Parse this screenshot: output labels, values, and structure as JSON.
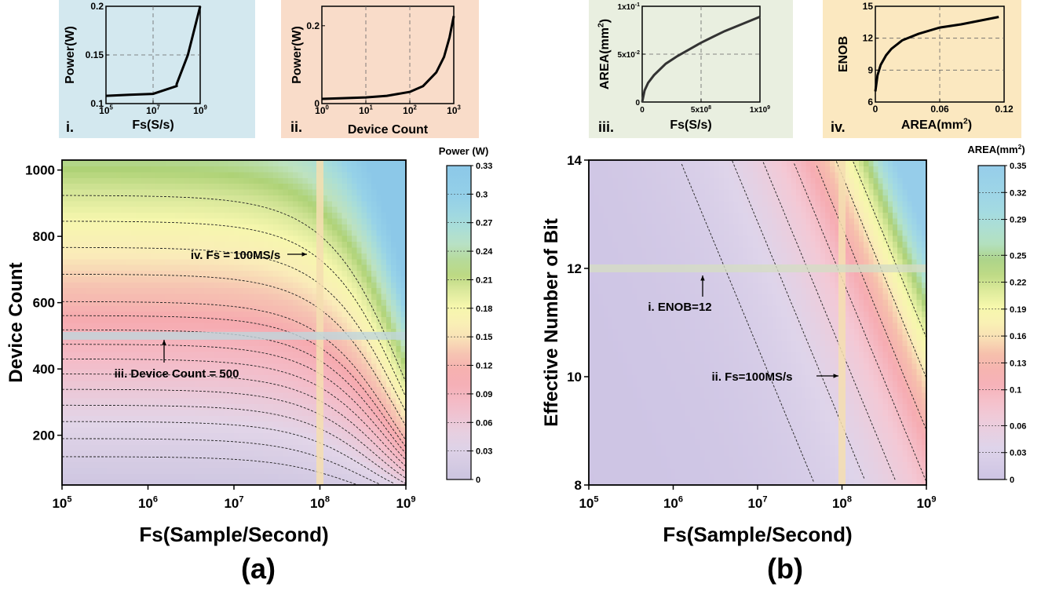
{
  "panel_labels": {
    "a": "(a)",
    "b": "(b)"
  },
  "chart_data": [
    {
      "id": "inset-i",
      "type": "line",
      "tag": "i.",
      "xlabel": "Fs(S/s)",
      "ylabel": "Power(W)",
      "xscale": "log",
      "xlim": [
        100000.0,
        1000000000.0
      ],
      "ylim": [
        0.1,
        0.2
      ],
      "x_ticks": [
        {
          "v": 100000.0,
          "b": "10",
          "e": "5"
        },
        {
          "v": 10000000.0,
          "b": "10",
          "e": "7"
        },
        {
          "v": 1000000000.0,
          "b": "10",
          "e": "9"
        }
      ],
      "y_ticks": [
        "0.1",
        "0.15",
        "0.2"
      ],
      "grid": true,
      "background": "#d3e8ef",
      "x": [
        100000.0,
        1000000.0,
        10000000.0,
        100000000.0,
        100000000.0,
        300000000.0,
        1000000000.0
      ],
      "y": [
        0.108,
        0.109,
        0.11,
        0.118,
        0.12,
        0.15,
        0.2
      ]
    },
    {
      "id": "inset-ii",
      "type": "line",
      "tag": "ii.",
      "xlabel": "Device Count",
      "ylabel": "Power(W)",
      "xscale": "log",
      "xlim": [
        1,
        1000
      ],
      "ylim": [
        0,
        0.25
      ],
      "x_ticks": [
        {
          "v": 1,
          "b": "10",
          "e": "0"
        },
        {
          "v": 10,
          "b": "10",
          "e": "1"
        },
        {
          "v": 100,
          "b": "10",
          "e": "2"
        },
        {
          "v": 1000,
          "b": "10",
          "e": "3"
        }
      ],
      "y_ticks": [
        "0",
        "0.2"
      ],
      "grid": true,
      "background": "#f9dcc9",
      "x": [
        1,
        3,
        10,
        30,
        100,
        200,
        400,
        600,
        800,
        1000
      ],
      "y": [
        0.012,
        0.014,
        0.016,
        0.02,
        0.03,
        0.045,
        0.08,
        0.12,
        0.17,
        0.225
      ]
    },
    {
      "id": "inset-iii",
      "type": "line",
      "tag": "iii.",
      "xlabel": "Fs(S/s)",
      "ylabel": "AREA(mm",
      "ylabel_sup": "2",
      "ylabel_tail": ")",
      "xscale": "linear",
      "xlim": [
        0,
        1000000000.0
      ],
      "ylim": [
        0,
        0.1
      ],
      "x_ticks": [
        {
          "v": 0,
          "t": "0"
        },
        {
          "v": 500000000.0,
          "t": "5x10",
          "e": "8"
        },
        {
          "v": 1000000000.0,
          "t": "1x10",
          "e": "9"
        }
      ],
      "y_ticks": [
        {
          "v": 0,
          "t": "0"
        },
        {
          "v": 0.05,
          "t": "5x10",
          "e": "-2"
        },
        {
          "v": 0.1,
          "t": "1x10",
          "e": "-1"
        }
      ],
      "grid": true,
      "background": "#e9efe0",
      "x": [
        0,
        20000000.0,
        50000000.0,
        100000000.0,
        200000000.0,
        300000000.0,
        400000000.0,
        500000000.0,
        600000000.0,
        700000000.0,
        800000000.0,
        900000000.0,
        1000000000.0
      ],
      "y": [
        0,
        0.012,
        0.02,
        0.028,
        0.04,
        0.048,
        0.055,
        0.062,
        0.068,
        0.074,
        0.079,
        0.084,
        0.089
      ]
    },
    {
      "id": "inset-iv",
      "type": "line",
      "tag": "iv.",
      "xlabel": "AREA(mm",
      "xlabel_sup": "2",
      "xlabel_tail": ")",
      "ylabel": "ENOB",
      "xscale": "linear",
      "xlim": [
        0,
        0.12
      ],
      "ylim": [
        6,
        15
      ],
      "x_ticks": [
        "0",
        "0.06",
        "0.12"
      ],
      "y_ticks": [
        "6",
        "9",
        "12",
        "15"
      ],
      "grid": true,
      "background": "#fbe8c0",
      "x": [
        0,
        0.002,
        0.005,
        0.01,
        0.015,
        0.025,
        0.04,
        0.06,
        0.08,
        0.1,
        0.115
      ],
      "y": [
        7,
        8.5,
        9.5,
        10.4,
        11,
        11.8,
        12.4,
        13,
        13.3,
        13.7,
        14
      ]
    },
    {
      "id": "main-a",
      "type": "heatmap",
      "xlabel": "Fs(Sample/Second)",
      "ylabel": "Device Count",
      "xscale": "log",
      "xlim": [
        100000.0,
        1000000000.0
      ],
      "ylim": [
        50,
        1030
      ],
      "x_ticks": [
        {
          "v": 100000.0,
          "b": "10",
          "e": "5"
        },
        {
          "v": 1000000.0,
          "b": "10",
          "e": "6"
        },
        {
          "v": 10000000.0,
          "b": "10",
          "e": "7"
        },
        {
          "v": 100000000.0,
          "b": "10",
          "e": "8"
        },
        {
          "v": 1000000000.0,
          "b": "10",
          "e": "9"
        }
      ],
      "y_ticks": [
        "200",
        "400",
        "600",
        "800",
        "1000"
      ],
      "colorbar": {
        "title": "Power (W)",
        "min": 0,
        "max": 0.33,
        "ticks": [
          "0",
          "0.03",
          "0.06",
          "0.09",
          "0.12",
          "0.15",
          "0.18",
          "0.21",
          "0.24",
          "0.27",
          "0.3",
          "0.33"
        ]
      },
      "contour_levels": [
        0.02,
        0.03,
        0.04,
        0.05,
        0.06,
        0.07,
        0.08,
        0.09,
        0.1,
        0.11,
        0.12,
        0.14,
        0.16,
        0.18,
        0.2
      ],
      "annotations": [
        {
          "text": "iv. Fs = 100MS/s",
          "target_x": 100000000.0,
          "target_y": 740
        },
        {
          "text": "iii. Device Count = 500",
          "target_x": 2000000.0,
          "target_y": 500
        }
      ],
      "highlight_vline_x": 100000000.0,
      "highlight_hline_y": 500
    },
    {
      "id": "main-b",
      "type": "heatmap",
      "xlabel": "Fs(Sample/Second)",
      "ylabel": "Effective Number of Bit",
      "xscale": "log",
      "xlim": [
        100000.0,
        1000000000.0
      ],
      "ylim": [
        8,
        14
      ],
      "x_ticks": [
        {
          "v": 100000.0,
          "b": "10",
          "e": "5"
        },
        {
          "v": 1000000.0,
          "b": "10",
          "e": "6"
        },
        {
          "v": 10000000.0,
          "b": "10",
          "e": "7"
        },
        {
          "v": 100000000.0,
          "b": "10",
          "e": "8"
        },
        {
          "v": 1000000000.0,
          "b": "10",
          "e": "9"
        }
      ],
      "y_ticks": [
        "8",
        "10",
        "12",
        "14"
      ],
      "colorbar": {
        "title": "AREA(mm",
        "title_sup": "2",
        "title_tail": ")",
        "min": 0,
        "max": 0.35,
        "ticks": [
          "0",
          "0.03",
          "0.06",
          "0.1",
          "0.13",
          "0.16",
          "0.19",
          "0.22",
          "0.25",
          "0.29",
          "0.32",
          "0.35"
        ]
      },
      "contour_levels": [
        0.02,
        0.04,
        0.06,
        0.09,
        0.12,
        0.16,
        0.2
      ],
      "annotations": [
        {
          "text": "i. ENOB=12",
          "target_x": 2000000.0,
          "target_y": 12
        },
        {
          "text": "ii. Fs=100MS/s",
          "target_x": 100000000.0,
          "target_y": 10
        }
      ],
      "highlight_vline_x": 100000000.0,
      "highlight_hline_y": 12
    }
  ]
}
